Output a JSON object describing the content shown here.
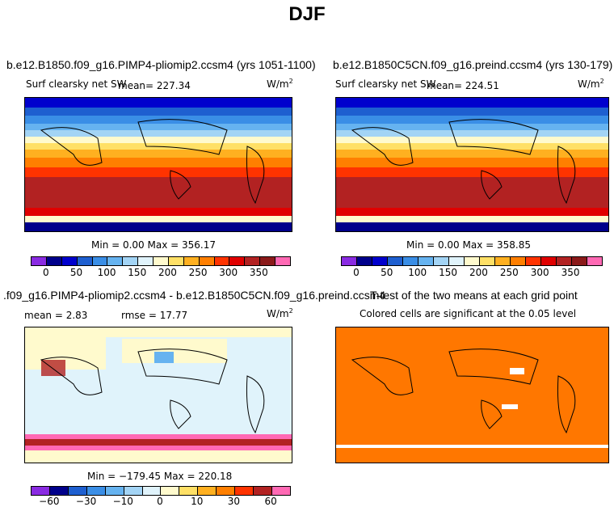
{
  "title": "DJF",
  "panels": [
    {
      "case_title": "b.e12.B1850.f09_g16.PIMP4-pliomip2.ccsm4 (yrs 1051-1100)",
      "variable": "Surf clearsky net SW",
      "mean_label": "mean= 227.34",
      "units": "W/m",
      "units_sup": "2",
      "minmax": "Min =    0.00 Max = 356.17",
      "colorbar_labels": [
        "0",
        "50",
        "100",
        "150",
        "200",
        "250",
        "300",
        "350"
      ]
    },
    {
      "case_title": "b.e12.B1850C5CN.f09_g16.preind.ccsm4 (yrs 130-179)",
      "variable": "Surf clearsky net SW",
      "mean_label": "mean= 224.51",
      "units": "W/m",
      "units_sup": "2",
      "minmax": "Min =    0.00 Max = 358.85",
      "colorbar_labels": [
        "0",
        "50",
        "100",
        "150",
        "200",
        "250",
        "300",
        "350"
      ]
    },
    {
      "case_title": ".f09_g16.PIMP4-pliomip2.ccsm4 - b.e12.B1850C5CN.f09_g16.preind.ccsm4",
      "mean_label": "mean =    2.83",
      "rmse_label": "rmse =  17.77",
      "units": "W/m",
      "units_sup": "2",
      "minmax": "Min = −179.45 Max = 220.18",
      "colorbar_labels": [
        "−60",
        "−30",
        "−10",
        "0",
        "10",
        "30",
        "60"
      ]
    },
    {
      "case_title": "T-test of the two means at each grid point",
      "subtitle": "Colored cells are significant at the 0.05 level"
    }
  ],
  "colors": {
    "abs_scale": [
      "#8a2be2",
      "#00008b",
      "#0000cd",
      "#1e5fd0",
      "#3a8ee6",
      "#66b3f0",
      "#a3d4f5",
      "#e0f3fb",
      "#fffacd",
      "#ffe066",
      "#ffb020",
      "#ff7f00",
      "#ff3300",
      "#e00000",
      "#b22222",
      "#8b1a1a",
      "#ff69b4"
    ],
    "diff_scale": [
      "#8a2be2",
      "#00008b",
      "#1e5fd0",
      "#3a8ee6",
      "#66b3f0",
      "#a3d4f5",
      "#e0f3fb",
      "#fffacd",
      "#ffe066",
      "#ffb020",
      "#ff7f00",
      "#ff3300",
      "#b22222",
      "#ff69b4"
    ],
    "ttest": "#ff7700"
  }
}
